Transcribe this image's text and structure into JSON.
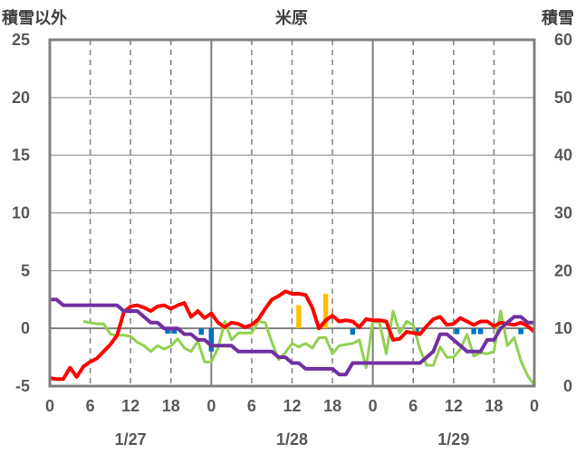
{
  "chart_data": {
    "type": "line",
    "title": "米原",
    "left_axis_label": "積雪以外",
    "right_axis_label": "積雪",
    "left_ylim": [
      -5,
      25
    ],
    "left_yticks": [
      "-5",
      "0",
      "5",
      "10",
      "15",
      "20",
      "25"
    ],
    "right_ylim": [
      0,
      60
    ],
    "right_yticks": [
      "0",
      "10",
      "20",
      "30",
      "40",
      "50",
      "60"
    ],
    "xlim": [
      0,
      72
    ],
    "xticks": [
      "0",
      "6",
      "12",
      "18",
      "0",
      "6",
      "12",
      "18",
      "0",
      "6",
      "12",
      "18",
      "0"
    ],
    "date_labels": [
      "1/27",
      "1/28",
      "1/29"
    ],
    "grid": true,
    "series": [
      {
        "id": "red",
        "color": "#ff0000",
        "axis": "left",
        "x": [
          0,
          1,
          2,
          3,
          4,
          5,
          6,
          7,
          8,
          9,
          10,
          11,
          12,
          13,
          14,
          15,
          16,
          17,
          18,
          19,
          20,
          21,
          22,
          23,
          24,
          25,
          26,
          27,
          28,
          29,
          30,
          31,
          32,
          33,
          34,
          35,
          36,
          37,
          38,
          39,
          40,
          41,
          42,
          43,
          44,
          45,
          46,
          47,
          48,
          49,
          50,
          51,
          52,
          53,
          54,
          55,
          56,
          57,
          58,
          59,
          60,
          61,
          62,
          63,
          64,
          65,
          66,
          67,
          68,
          69,
          70,
          71,
          72
        ],
        "values": [
          -4.3,
          -4.4,
          -4.4,
          -3.4,
          -4.2,
          -3.3,
          -2.9,
          -2.6,
          -2.0,
          -1.4,
          -0.6,
          1.4,
          1.9,
          2.0,
          1.8,
          1.5,
          1.9,
          2.0,
          1.7,
          2.0,
          2.2,
          1.0,
          1.5,
          0.9,
          1.3,
          0.5,
          0.1,
          0.5,
          0.4,
          0.1,
          0.3,
          0.8,
          1.7,
          2.5,
          2.8,
          3.2,
          3.0,
          3.0,
          2.9,
          1.8,
          0.0,
          0.7,
          1.1,
          0.6,
          0.7,
          0.6,
          0.1,
          0.8,
          0.7,
          0.7,
          0.6,
          -1.0,
          -0.9,
          -0.3,
          -0.4,
          -0.5,
          0.2,
          0.8,
          1.0,
          0.3,
          0.4,
          0.9,
          0.6,
          0.3,
          0.6,
          0.6,
          0.2,
          0.5,
          0.4,
          0.3,
          0.5,
          0.2,
          -0.3
        ]
      },
      {
        "id": "green",
        "color": "#92d050",
        "axis": "left",
        "x": [
          5,
          6,
          7,
          8,
          9,
          10,
          11,
          12,
          13,
          14,
          15,
          16,
          17,
          18,
          19,
          20,
          21,
          22,
          23,
          24,
          25,
          26,
          27,
          28,
          29,
          30,
          31,
          32,
          33,
          34,
          35,
          36,
          37,
          38,
          39,
          40,
          41,
          42,
          43,
          44,
          45,
          46,
          47,
          48,
          49,
          50,
          51,
          52,
          53,
          54,
          55,
          56,
          57,
          58,
          59,
          60,
          61,
          62,
          63,
          64,
          65,
          66,
          67,
          68,
          69,
          70,
          71,
          72
        ],
        "values": [
          0.6,
          0.5,
          0.4,
          0.4,
          -0.5,
          -0.6,
          -0.6,
          -0.7,
          -1.2,
          -1.5,
          -2.0,
          -1.5,
          -1.8,
          -1.5,
          -0.9,
          -1.7,
          -2.0,
          -1.1,
          -2.9,
          -2.9,
          -1.7,
          0.6,
          -1.0,
          -0.4,
          -0.4,
          -0.4,
          0.6,
          0.5,
          -1.2,
          -2.7,
          -2.1,
          -1.3,
          -1.6,
          -1.3,
          -1.7,
          -0.8,
          -0.8,
          -2.2,
          -1.5,
          -1.4,
          -1.3,
          -1.0,
          -3.4,
          0.6,
          0.5,
          -2.2,
          1.5,
          -0.4,
          0.6,
          0.3,
          -1.8,
          -3.2,
          -3.2,
          -1.6,
          -2.5,
          -2.5,
          -1.8,
          -0.5,
          -2.4,
          -2.1,
          -2.2,
          -2.0,
          1.5,
          -1.5,
          -0.8,
          -2.8,
          -4.1,
          -4.9
        ]
      },
      {
        "id": "purple",
        "color": "#7030a0",
        "axis": "right",
        "x": [
          0,
          1,
          2,
          3,
          4,
          5,
          6,
          7,
          8,
          9,
          10,
          11,
          12,
          13,
          14,
          15,
          16,
          17,
          18,
          19,
          20,
          21,
          22,
          23,
          24,
          25,
          26,
          27,
          28,
          29,
          30,
          31,
          32,
          33,
          34,
          35,
          36,
          37,
          38,
          39,
          40,
          41,
          42,
          43,
          44,
          45,
          46,
          47,
          48,
          49,
          50,
          51,
          52,
          53,
          54,
          55,
          56,
          57,
          58,
          59,
          60,
          61,
          62,
          63,
          64,
          65,
          66,
          67,
          68,
          69,
          70,
          71,
          72
        ],
        "values": [
          15,
          15,
          14,
          14,
          14,
          14,
          14,
          14,
          14,
          14,
          14,
          13,
          13,
          13,
          12,
          11,
          11,
          10,
          10,
          10,
          9,
          9,
          8,
          8,
          7,
          7,
          7,
          7,
          6,
          6,
          6,
          6,
          6,
          6,
          5,
          5,
          4,
          4,
          3,
          3,
          3,
          3,
          3,
          2,
          2,
          4,
          4,
          4,
          4,
          4,
          4,
          4,
          4,
          4,
          4,
          4,
          5,
          6,
          9,
          9,
          8,
          7,
          6,
          6,
          6,
          8,
          8,
          10,
          11,
          12,
          12,
          11,
          11
        ]
      }
    ],
    "bars": [
      {
        "id": "b1",
        "color": "#0070c0",
        "axis": "left",
        "x": 17.5,
        "value": -0.45
      },
      {
        "id": "b2",
        "color": "#0070c0",
        "axis": "left",
        "x": 18.5,
        "value": -0.45
      },
      {
        "id": "b3",
        "color": "#0070c0",
        "axis": "left",
        "x": 22.5,
        "value": -0.55
      },
      {
        "id": "b4",
        "color": "#0070c0",
        "axis": "left",
        "x": 24.0,
        "value": -2.0
      },
      {
        "id": "b5",
        "color": "#ffc000",
        "axis": "left",
        "x": 37.0,
        "value": 2.0
      },
      {
        "id": "b6",
        "color": "#ffc000",
        "axis": "left",
        "x": 41.0,
        "value": 3.0
      },
      {
        "id": "b7",
        "color": "#0070c0",
        "axis": "left",
        "x": 45.0,
        "value": -0.55
      },
      {
        "id": "b8",
        "color": "#0070c0",
        "axis": "left",
        "x": 54.5,
        "value": -0.5
      },
      {
        "id": "b9",
        "color": "#0070c0",
        "axis": "left",
        "x": 60.5,
        "value": -0.5
      },
      {
        "id": "b10",
        "color": "#0070c0",
        "axis": "left",
        "x": 63.0,
        "value": -0.5
      },
      {
        "id": "b11",
        "color": "#0070c0",
        "axis": "left",
        "x": 64.0,
        "value": -0.5
      },
      {
        "id": "b12",
        "color": "#0070c0",
        "axis": "left",
        "x": 70.0,
        "value": -0.5
      }
    ]
  }
}
